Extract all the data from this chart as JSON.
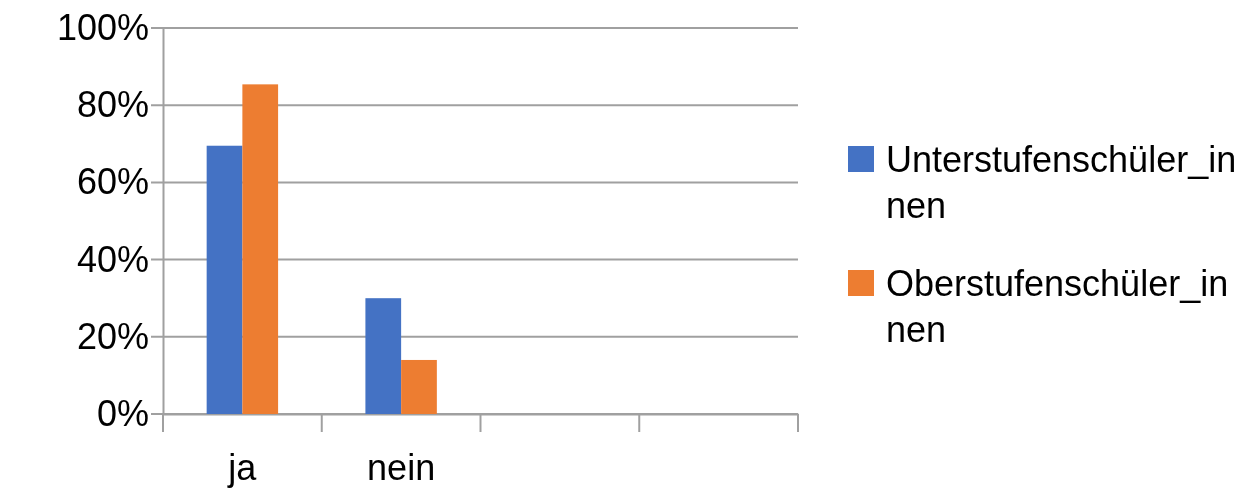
{
  "chart_data": {
    "type": "bar",
    "categories": [
      "ja",
      "nein",
      null,
      null
    ],
    "series": [
      {
        "name": "Unterstufenschüler_innen",
        "color": "#4472c4",
        "values": [
          69.5,
          30,
          null,
          null
        ]
      },
      {
        "name": "Oberstufenschüler_innen",
        "color": "#ed7d31",
        "values": [
          85.4,
          14,
          null,
          null
        ]
      }
    ],
    "ylim": [
      0,
      100
    ],
    "yticks": [
      {
        "value": 0,
        "label": "0%"
      },
      {
        "value": 20,
        "label": "20%"
      },
      {
        "value": 40,
        "label": "40%"
      },
      {
        "value": 60,
        "label": "60%"
      },
      {
        "value": 80,
        "label": "80%"
      },
      {
        "value": 100,
        "label": "100%"
      }
    ],
    "grid": "y",
    "legend": "right"
  }
}
